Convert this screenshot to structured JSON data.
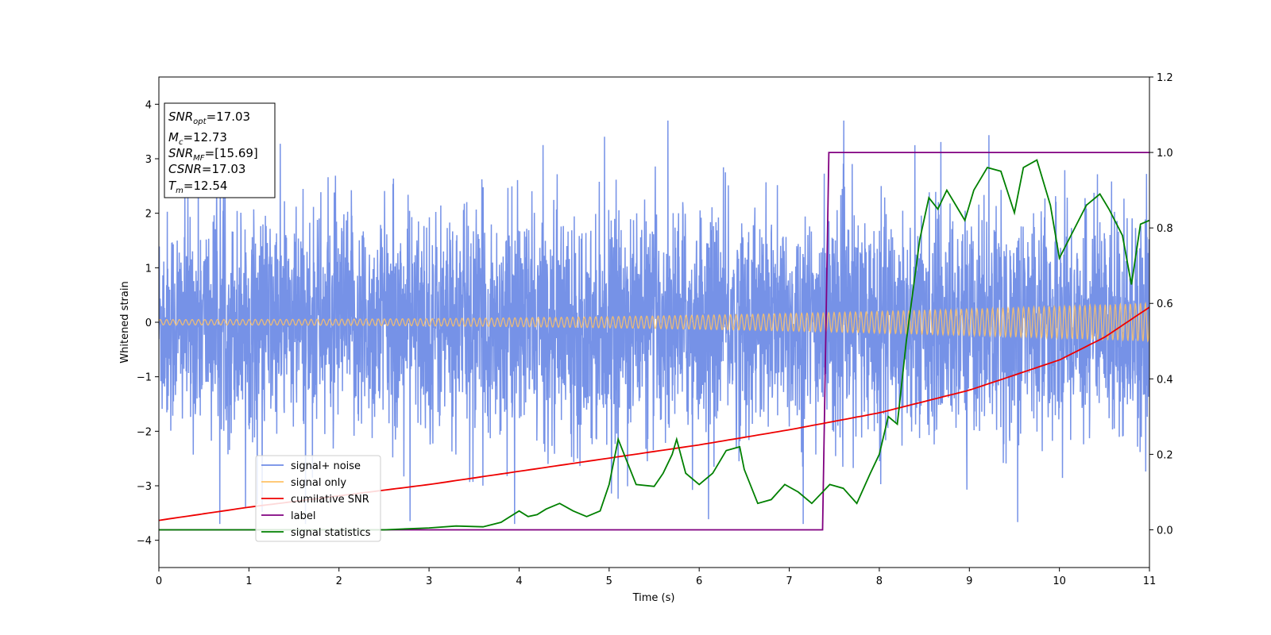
{
  "chart_data": {
    "type": "line",
    "xlabel": "Time (s)",
    "ylabel": "Whitened strain",
    "xlim": [
      0,
      11
    ],
    "ylim": [
      -4.5,
      4.5
    ],
    "y2lim": [
      -0.1,
      1.2
    ],
    "xticks": [
      "0",
      "1",
      "2",
      "3",
      "4",
      "5",
      "6",
      "7",
      "8",
      "9",
      "10",
      "11"
    ],
    "yticks": [
      "4",
      "3",
      "2",
      "1",
      "0",
      "−1",
      "−2",
      "−3",
      "−4"
    ],
    "y2ticks": [
      "1.2",
      "1.0",
      "0.8",
      "0.6",
      "0.4",
      "0.2",
      "0.0"
    ],
    "grid": false,
    "legend_position": "lower-left",
    "legend": [
      "signal+ noise",
      "signal only",
      "cumilative SNR",
      "label",
      "signal statistics"
    ],
    "colors": {
      "noise": "#6f8ce6",
      "signal": "#ffc266",
      "snr": "#ee0000",
      "label": "#800080",
      "stats": "#008000"
    },
    "series": [
      {
        "name": "signal+ noise",
        "axis": "left",
        "description_values": {
          "approx_range": [
            -3.6,
            3.6
          ]
        }
      },
      {
        "name": "signal only",
        "axis": "left",
        "amplitude_start": 0.05,
        "amplitude_end": 0.35
      },
      {
        "name": "cumilative SNR",
        "axis": "right",
        "x": [
          0,
          1,
          2,
          3,
          4,
          5,
          6,
          7,
          8,
          9,
          10,
          10.5,
          11
        ],
        "y": [
          0.025,
          0.06,
          0.09,
          0.12,
          0.155,
          0.19,
          0.225,
          0.265,
          0.31,
          0.37,
          0.45,
          0.51,
          0.59
        ]
      },
      {
        "name": "label",
        "axis": "right",
        "x": [
          0,
          7.37,
          7.44,
          11
        ],
        "y": [
          0.0,
          0.0,
          1.0,
          1.0
        ]
      },
      {
        "name": "signal statistics",
        "axis": "right",
        "x": [
          0,
          2.5,
          3.0,
          3.3,
          3.6,
          3.8,
          4.0,
          4.1,
          4.2,
          4.3,
          4.45,
          4.6,
          4.75,
          4.9,
          5.0,
          5.1,
          5.3,
          5.5,
          5.6,
          5.7,
          5.75,
          5.85,
          6.0,
          6.15,
          6.3,
          6.45,
          6.5,
          6.65,
          6.8,
          6.95,
          7.1,
          7.25,
          7.45,
          7.6,
          7.75,
          7.9,
          8.0,
          8.1,
          8.2,
          8.3,
          8.45,
          8.55,
          8.65,
          8.75,
          8.85,
          8.95,
          9.05,
          9.2,
          9.35,
          9.5,
          9.6,
          9.75,
          9.9,
          10.0,
          10.15,
          10.3,
          10.45,
          10.55,
          10.7,
          10.8,
          10.9,
          11.0
        ],
        "y": [
          0.0,
          0.0,
          0.005,
          0.01,
          0.008,
          0.02,
          0.05,
          0.035,
          0.04,
          0.055,
          0.07,
          0.05,
          0.035,
          0.05,
          0.12,
          0.24,
          0.12,
          0.115,
          0.15,
          0.2,
          0.24,
          0.15,
          0.12,
          0.15,
          0.21,
          0.22,
          0.16,
          0.07,
          0.08,
          0.12,
          0.1,
          0.07,
          0.12,
          0.11,
          0.07,
          0.15,
          0.2,
          0.3,
          0.28,
          0.5,
          0.77,
          0.88,
          0.85,
          0.9,
          0.86,
          0.82,
          0.9,
          0.96,
          0.95,
          0.84,
          0.96,
          0.98,
          0.86,
          0.72,
          0.79,
          0.86,
          0.89,
          0.85,
          0.78,
          0.65,
          0.81,
          0.82
        ]
      }
    ],
    "info_box": {
      "snr_opt": {
        "main": "SNR",
        "sub": "opt",
        "value": "=17.03"
      },
      "mc": {
        "main": "M",
        "sub": "c",
        "value": "=12.73"
      },
      "snr_mf": {
        "main": "SNR",
        "sub": "MF",
        "value": "=[15.69]"
      },
      "csnr": {
        "main": "CSNR",
        "value": "=17.03"
      },
      "tm": {
        "main": "T",
        "sub": "m",
        "value": "=12.54"
      }
    }
  }
}
